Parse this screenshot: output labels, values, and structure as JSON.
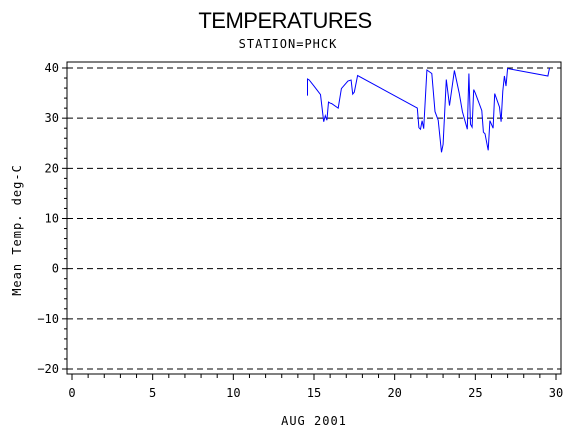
{
  "chart_data": {
    "type": "line",
    "title": "TEMPERATURES",
    "subtitle": "STATION=PHCK",
    "xlabel": "AUG 2001",
    "ylabel": "Mean Temp. deg-C",
    "xlim": [
      0,
      30
    ],
    "ylim": [
      -21,
      41
    ],
    "xticks": [
      0,
      5,
      10,
      15,
      20,
      25,
      30
    ],
    "yticks": [
      -20,
      -10,
      0,
      10,
      20,
      30,
      40
    ],
    "grid": "dashed horizontal at y ticks",
    "line_color": "#0000ff",
    "series": [
      {
        "x": [
          14.6,
          14.6,
          14.7,
          15.0,
          15.4,
          15.6,
          15.7,
          15.8,
          15.9,
          16.0,
          16.1,
          16.5,
          16.7,
          17.1,
          17.3,
          17.4,
          17.5,
          17.7,
          21.4,
          21.5,
          21.6,
          21.7,
          21.8,
          22.0,
          22.3,
          22.5,
          22.7,
          22.9,
          23.0,
          23.2,
          23.4,
          23.7,
          24.0,
          24.2,
          24.5,
          24.6,
          24.7,
          24.8,
          24.9,
          25.0,
          25.4,
          25.5,
          25.6,
          25.8,
          25.9,
          26.1,
          26.2,
          26.5,
          26.6,
          26.7,
          26.8,
          26.9,
          27.0,
          29.5,
          29.6
        ],
        "values": [
          34.5,
          37.8,
          37.6,
          36.4,
          34.7,
          29.3,
          30.5,
          29.6,
          33.2,
          33.0,
          32.9,
          32.0,
          35.9,
          37.4,
          37.6,
          34.8,
          35.2,
          38.5,
          32.0,
          28.1,
          27.8,
          29.5,
          27.9,
          39.6,
          38.9,
          31.3,
          29.6,
          23.2,
          24.8,
          37.7,
          32.5,
          39.5,
          35.0,
          31.3,
          27.8,
          38.9,
          28.8,
          28.2,
          35.7,
          35.0,
          31.5,
          27.2,
          26.9,
          23.6,
          29.5,
          28.0,
          34.9,
          32.2,
          29.3,
          35.4,
          38.4,
          36.4,
          39.9,
          38.4,
          40.0
        ]
      }
    ]
  }
}
